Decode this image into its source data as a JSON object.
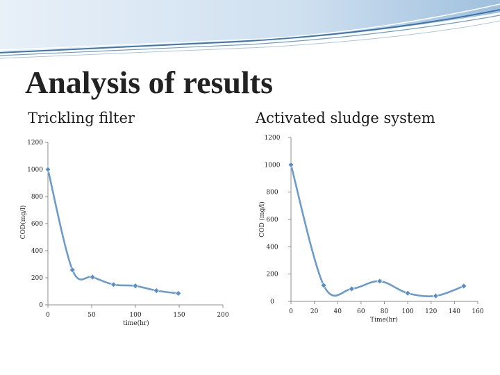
{
  "slide": {
    "title": "Analysis of results"
  },
  "colors": {
    "series": "#6b9bc9",
    "marker": "#5b8fc4",
    "banner_dark": "#4a7fb0",
    "banner_light": "#cfe0f0"
  },
  "chart_data": [
    {
      "type": "line",
      "title": "Trickling filter",
      "xlabel": "time(hr)",
      "ylabel": "COD(mg/l)",
      "xlim": [
        0,
        200
      ],
      "ylim": [
        0,
        1200
      ],
      "xticks": [
        0,
        50,
        100,
        150,
        200
      ],
      "yticks": [
        0,
        200,
        400,
        600,
        800,
        1000,
        1200
      ],
      "xtick_labels": [
        "0",
        "50",
        "100",
        "150",
        "200"
      ],
      "ytick_labels": [
        "0",
        "200",
        "400",
        "600",
        "800",
        "1000",
        "1200"
      ],
      "grid": false,
      "smooth": true,
      "x": [
        0,
        28,
        51,
        75,
        100,
        124,
        149
      ],
      "y": [
        1000,
        258,
        205,
        150,
        140,
        105,
        85
      ]
    },
    {
      "type": "line",
      "title": "Activated sludge system",
      "xlabel": "Time(hr)",
      "ylabel": "COD (mg/l)",
      "xlim": [
        0,
        160
      ],
      "ylim": [
        0,
        1200
      ],
      "xticks": [
        0,
        20,
        40,
        60,
        80,
        100,
        120,
        140,
        160
      ],
      "yticks": [
        0,
        200,
        400,
        600,
        800,
        1000,
        1200
      ],
      "xtick_labels": [
        "0",
        "20",
        "40",
        "60",
        "80",
        "100",
        "120",
        "140",
        "160"
      ],
      "ytick_labels": [
        "0",
        "200",
        "400",
        "600",
        "800",
        "1000",
        "1200"
      ],
      "grid": false,
      "smooth": true,
      "x": [
        0,
        28,
        52,
        76,
        100,
        124,
        148
      ],
      "y": [
        1000,
        118,
        92,
        148,
        60,
        40,
        112
      ]
    }
  ]
}
